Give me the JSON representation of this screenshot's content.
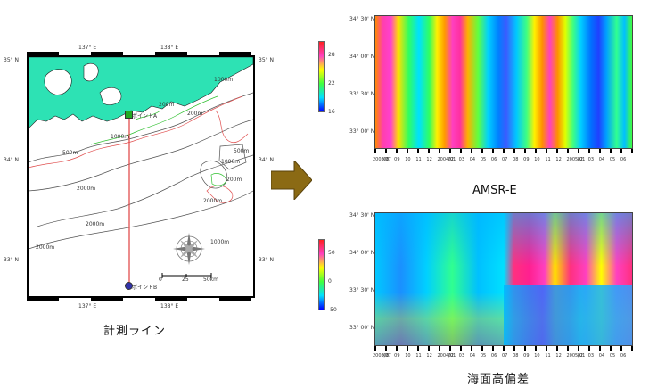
{
  "map": {
    "lon_labels_top": [
      "137° E",
      "138° E"
    ],
    "lon_labels_bottom": [
      "137° E",
      "138° E"
    ],
    "lat_labels_left": [
      "35° N",
      "34° N",
      "33° N"
    ],
    "lat_labels_right": [
      "35° N",
      "34° N",
      "33° N"
    ],
    "depth_labels": [
      "1000m",
      "200m",
      "1000m",
      "500m",
      "200m",
      "1000m",
      "500m",
      "200m",
      "2000m",
      "2000m",
      "1000m",
      "2000m",
      "2000m"
    ],
    "point_a": "ポイントA",
    "point_b": "ポイントB",
    "scale_values": [
      "0",
      "25",
      "50km"
    ],
    "caption": "計測ライン",
    "colors": {
      "land": "#2de2b4",
      "transect": "#e04040",
      "contour_gray": "#555555",
      "contour_red": "#e05050",
      "contour_green": "#30c030"
    }
  },
  "arrow": {
    "icon": "right-arrow-icon",
    "color": "#8b6a14"
  },
  "top_panel": {
    "caption": "AMSR-E",
    "y_labels": [
      "34° 30' N",
      "34° 00' N",
      "33° 30' N",
      "33° 00' N"
    ],
    "colorbar": {
      "ticks": [
        "28",
        "22",
        "16"
      ],
      "min": 14,
      "max": 30
    },
    "x_labels": [
      "2003/07",
      "08",
      "09",
      "10",
      "11",
      "12",
      "2004/01",
      "02",
      "03",
      "04",
      "05",
      "06",
      "07",
      "08",
      "09",
      "10",
      "11",
      "12",
      "2005/01",
      "02",
      "03",
      "04",
      "05",
      "06"
    ]
  },
  "bottom_panel": {
    "caption": "海面高偏差",
    "y_labels": [
      "34° 30' N",
      "34° 00' N",
      "33° 30' N",
      "33° 00' N"
    ],
    "colorbar": {
      "ticks": [
        "50",
        "0",
        "-50"
      ],
      "min": -60,
      "max": 60
    },
    "x_labels": [
      "2003/07",
      "08",
      "09",
      "10",
      "11",
      "12",
      "2004/01",
      "02",
      "03",
      "04",
      "05",
      "06",
      "07",
      "08",
      "09",
      "10",
      "11",
      "12",
      "2005/01",
      "02",
      "03",
      "04",
      "05",
      "06"
    ]
  }
}
